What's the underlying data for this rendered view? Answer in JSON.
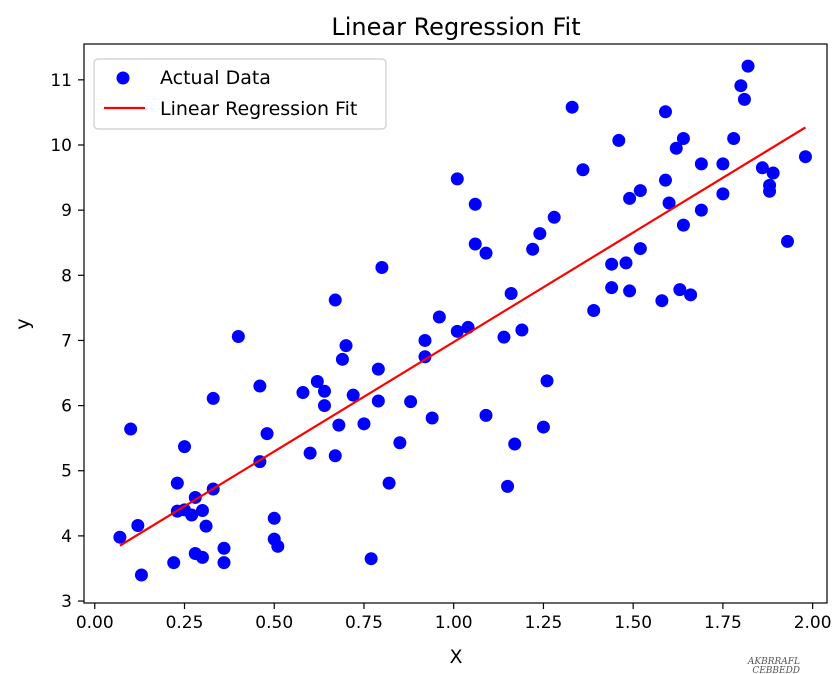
{
  "chart_data": {
    "type": "scatter",
    "title": "Linear Regression Fit",
    "xlabel": "X",
    "ylabel": "y",
    "xlim": [
      -0.03,
      2.04
    ],
    "ylim": [
      2.97,
      11.55
    ],
    "xticks": [
      "0.00",
      "0.25",
      "0.50",
      "0.75",
      "1.00",
      "1.25",
      "1.50",
      "1.75",
      "2.00"
    ],
    "yticks": [
      "3",
      "4",
      "5",
      "6",
      "7",
      "8",
      "9",
      "10",
      "11"
    ],
    "grid": false,
    "legend_position": "top-left",
    "series": [
      {
        "name": "Actual Data",
        "kind": "scatter",
        "color": "#0000ff",
        "points": [
          [
            0.07,
            3.98
          ],
          [
            0.1,
            5.64
          ],
          [
            0.12,
            4.16
          ],
          [
            0.13,
            3.4
          ],
          [
            0.22,
            3.59
          ],
          [
            0.23,
            4.81
          ],
          [
            0.23,
            4.38
          ],
          [
            0.25,
            4.4
          ],
          [
            0.25,
            5.37
          ],
          [
            0.27,
            4.32
          ],
          [
            0.28,
            3.73
          ],
          [
            0.28,
            4.59
          ],
          [
            0.3,
            3.67
          ],
          [
            0.3,
            4.39
          ],
          [
            0.31,
            4.15
          ],
          [
            0.33,
            4.72
          ],
          [
            0.33,
            6.11
          ],
          [
            0.36,
            3.81
          ],
          [
            0.36,
            3.59
          ],
          [
            0.4,
            7.06
          ],
          [
            0.46,
            6.3
          ],
          [
            0.46,
            5.14
          ],
          [
            0.48,
            5.57
          ],
          [
            0.5,
            4.27
          ],
          [
            0.5,
            3.95
          ],
          [
            0.51,
            3.84
          ],
          [
            0.58,
            6.2
          ],
          [
            0.6,
            5.27
          ],
          [
            0.62,
            6.37
          ],
          [
            0.64,
            6.0
          ],
          [
            0.64,
            6.22
          ],
          [
            0.67,
            7.62
          ],
          [
            0.67,
            5.23
          ],
          [
            0.68,
            5.7
          ],
          [
            0.69,
            6.71
          ],
          [
            0.7,
            6.92
          ],
          [
            0.72,
            6.16
          ],
          [
            0.75,
            5.72
          ],
          [
            0.77,
            3.65
          ],
          [
            0.79,
            6.56
          ],
          [
            0.79,
            6.07
          ],
          [
            0.8,
            8.12
          ],
          [
            0.82,
            4.81
          ],
          [
            0.85,
            5.43
          ],
          [
            0.88,
            6.06
          ],
          [
            0.92,
            6.75
          ],
          [
            0.92,
            7.0
          ],
          [
            0.94,
            5.81
          ],
          [
            0.96,
            7.36
          ],
          [
            1.01,
            9.48
          ],
          [
            1.01,
            7.14
          ],
          [
            1.04,
            7.2
          ],
          [
            1.06,
            9.09
          ],
          [
            1.06,
            8.48
          ],
          [
            1.09,
            8.34
          ],
          [
            1.09,
            5.85
          ],
          [
            1.14,
            7.05
          ],
          [
            1.15,
            4.76
          ],
          [
            1.16,
            7.72
          ],
          [
            1.17,
            5.41
          ],
          [
            1.19,
            7.16
          ],
          [
            1.22,
            8.4
          ],
          [
            1.24,
            8.64
          ],
          [
            1.25,
            5.67
          ],
          [
            1.26,
            6.38
          ],
          [
            1.28,
            8.89
          ],
          [
            1.33,
            10.58
          ],
          [
            1.36,
            9.62
          ],
          [
            1.39,
            7.46
          ],
          [
            1.44,
            7.81
          ],
          [
            1.44,
            8.17
          ],
          [
            1.46,
            10.07
          ],
          [
            1.48,
            8.19
          ],
          [
            1.49,
            9.18
          ],
          [
            1.49,
            7.76
          ],
          [
            1.52,
            9.3
          ],
          [
            1.52,
            8.41
          ],
          [
            1.58,
            7.61
          ],
          [
            1.59,
            10.51
          ],
          [
            1.59,
            9.46
          ],
          [
            1.6,
            9.11
          ],
          [
            1.62,
            9.95
          ],
          [
            1.63,
            7.78
          ],
          [
            1.64,
            8.77
          ],
          [
            1.64,
            10.1
          ],
          [
            1.66,
            7.7
          ],
          [
            1.69,
            9.0
          ],
          [
            1.69,
            9.71
          ],
          [
            1.75,
            9.71
          ],
          [
            1.75,
            9.25
          ],
          [
            1.78,
            10.1
          ],
          [
            1.8,
            10.91
          ],
          [
            1.81,
            10.7
          ],
          [
            1.82,
            11.21
          ],
          [
            1.86,
            9.65
          ],
          [
            1.88,
            9.38
          ],
          [
            1.88,
            9.29
          ],
          [
            1.89,
            9.57
          ],
          [
            1.93,
            8.52
          ],
          [
            1.98,
            9.82
          ]
        ]
      },
      {
        "name": "Linear Regression Fit",
        "kind": "line",
        "color": "#ff0000",
        "points": [
          [
            0.07,
            3.85
          ],
          [
            1.98,
            10.27
          ]
        ]
      }
    ],
    "watermark": "AKBRRAFL\nCEBBEDD"
  }
}
